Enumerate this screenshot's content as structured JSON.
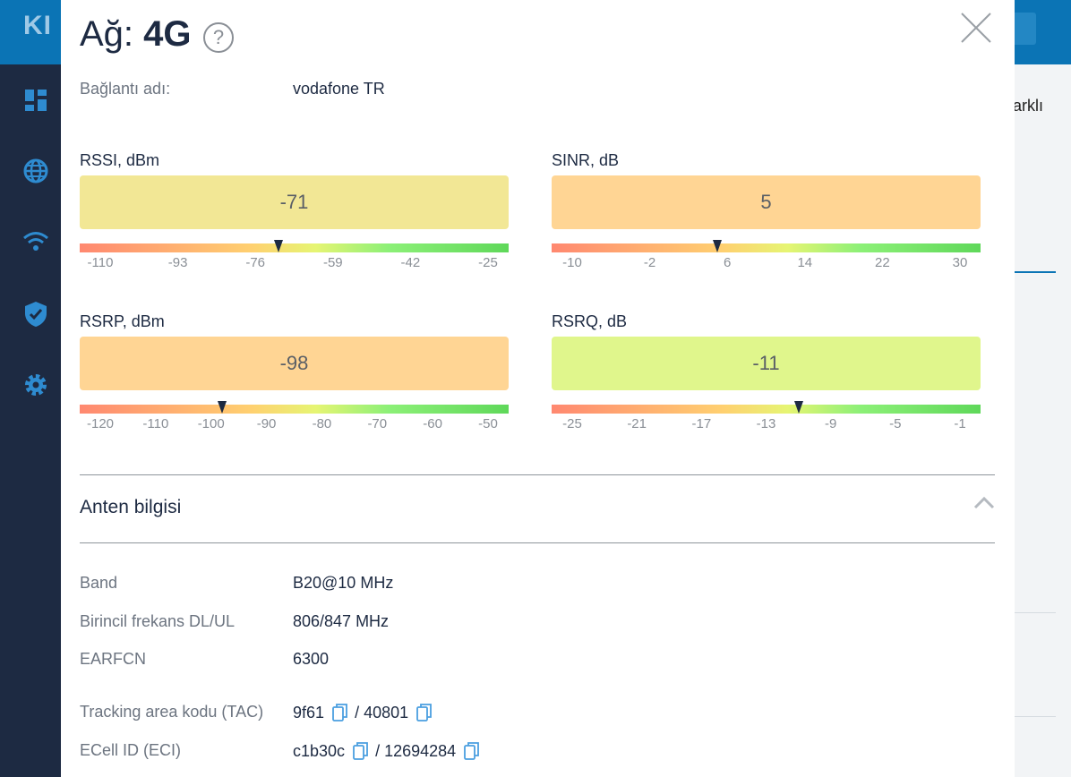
{
  "app": {
    "logo_text": "KI",
    "background_snippet": "arklı",
    "nav_items": [
      {
        "name": "dashboard-icon"
      },
      {
        "name": "globe-icon"
      },
      {
        "name": "wifi-icon"
      },
      {
        "name": "shield-icon"
      },
      {
        "name": "gear-icon"
      }
    ]
  },
  "modal": {
    "title_prefix": "Ağ:",
    "title_value": "4G",
    "help_glyph": "?",
    "connection": {
      "label": "Bağlantı adı:",
      "value": "vodafone TR"
    },
    "gauges": [
      {
        "title": "RSSI, dBm",
        "value": "-71",
        "value_num": -71,
        "min": -110,
        "max": -25,
        "ticks": [
          "-110",
          "-93",
          "-76",
          "-59",
          "-42",
          "-25"
        ],
        "box_color": "#f2e795"
      },
      {
        "title": "SINR, dB",
        "value": "5",
        "value_num": 5,
        "min": -10,
        "max": 30,
        "ticks": [
          "-10",
          "-2",
          "6",
          "14",
          "22",
          "30"
        ],
        "box_color": "#ffd594"
      },
      {
        "title": "RSRP, dBm",
        "value": "-98",
        "value_num": -98,
        "min": -120,
        "max": -50,
        "ticks": [
          "-120",
          "-110",
          "-100",
          "-90",
          "-80",
          "-70",
          "-60",
          "-50"
        ],
        "box_color": "#ffd594"
      },
      {
        "title": "RSRQ, dB",
        "value": "-11",
        "value_num": -11,
        "min": -25,
        "max": -1,
        "ticks": [
          "-25",
          "-21",
          "-17",
          "-13",
          "-9",
          "-5",
          "-1"
        ],
        "box_color": "#e0f68c"
      }
    ],
    "antenna": {
      "section_title": "Anten bilgisi",
      "rows": [
        {
          "label": "Band",
          "value": "B20@10 MHz"
        },
        {
          "label": "Birincil frekans DL/UL",
          "value": "806/847 MHz"
        },
        {
          "label": "EARFCN",
          "value": "6300"
        }
      ],
      "tac": {
        "label": "Tracking area kodu (TAC)",
        "hex": "9f61",
        "sep": "/ ",
        "dec": "40801"
      },
      "eci": {
        "label": "ECell ID (ECI)",
        "hex": "c1b30c",
        "sep": "/ ",
        "dec": "12694284"
      }
    }
  }
}
